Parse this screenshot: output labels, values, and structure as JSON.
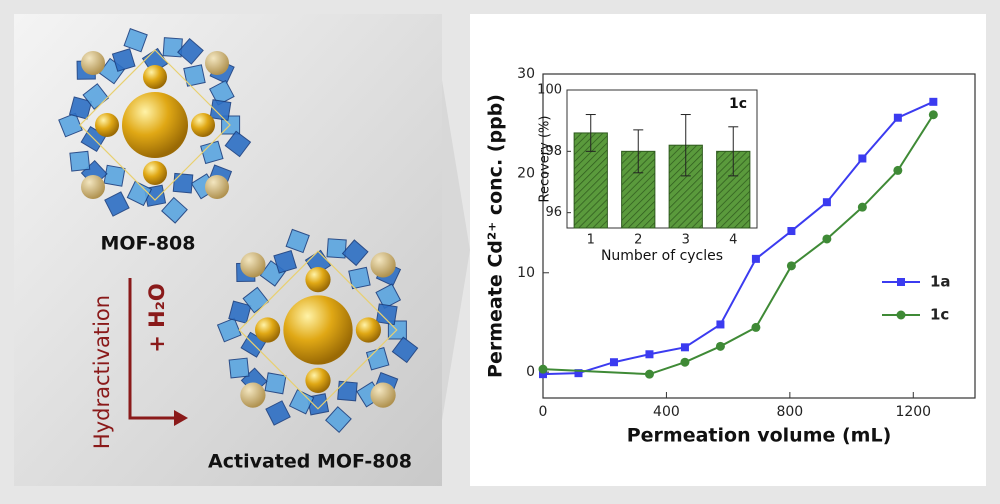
{
  "illustration": {
    "top_label": "MOF-808",
    "bottom_label": "Activated MOF-808",
    "process_label": "Hydractivation",
    "reagent_label": "+ H₂O"
  },
  "chart_data": [
    {
      "type": "line",
      "xlabel": "Permeation volume (mL)",
      "ylabel": "Permeate Cd²⁺ conc. (ppb)",
      "xlim": [
        0,
        1400
      ],
      "xticks": [
        0,
        400,
        800,
        1200
      ],
      "ylim": [
        -2.6,
        30
      ],
      "yticks": [
        0,
        10,
        20,
        30
      ],
      "legend": "right",
      "series": [
        {
          "name": "1a",
          "color": "#3b3bf0",
          "marker": "square",
          "x": [
            0,
            115,
            230,
            345,
            460,
            575,
            690,
            805,
            920,
            1035,
            1150,
            1265
          ],
          "values": [
            -0.2,
            -0.1,
            1.0,
            1.8,
            2.5,
            4.8,
            11.4,
            14.2,
            17.1,
            21.5,
            25.6,
            27.2
          ]
        },
        {
          "name": "1c",
          "color": "#3f8a36",
          "marker": "circle",
          "x": [
            0,
            345,
            460,
            575,
            690,
            805,
            920,
            1035,
            1150,
            1265
          ],
          "values": [
            0.3,
            -0.2,
            1.0,
            2.6,
            4.5,
            10.7,
            13.4,
            16.6,
            20.3,
            25.9
          ]
        }
      ]
    },
    {
      "type": "bar",
      "title": "1c",
      "xlabel": "Number of cycles",
      "ylabel": "Recovery (%)",
      "categories": [
        "1",
        "2",
        "3",
        "4"
      ],
      "values": [
        98.6,
        98.0,
        98.2,
        98.0
      ],
      "errors": [
        0.6,
        0.7,
        1.0,
        0.8
      ],
      "color": "#5a9a3c",
      "ylim": [
        95.5,
        100
      ],
      "yticks": [
        96,
        98,
        100
      ]
    }
  ]
}
